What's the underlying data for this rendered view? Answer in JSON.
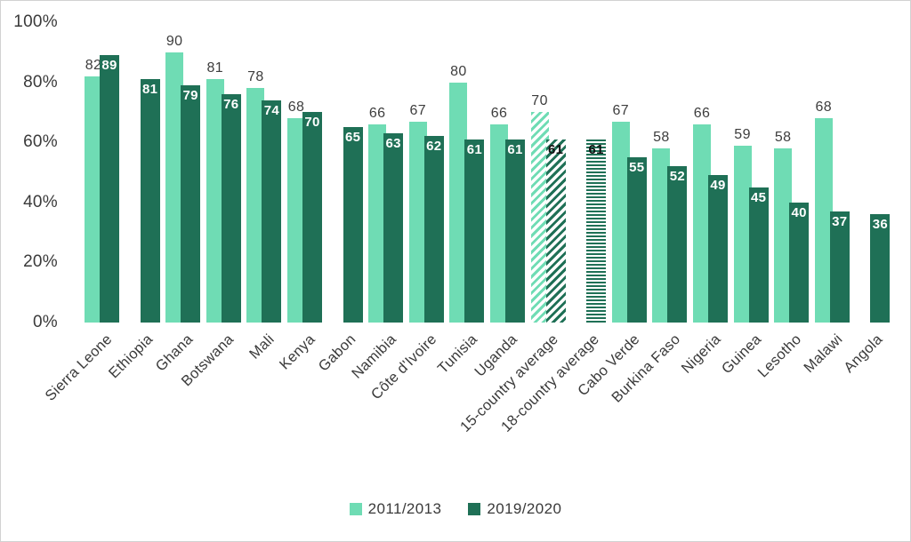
{
  "figure": {
    "background": "#ffffff",
    "border_color": "#d2d2d2"
  },
  "chart_data": {
    "type": "bar",
    "title": "",
    "xlabel": "",
    "ylabel": "",
    "ylim": [
      0,
      100
    ],
    "yticks": [
      "0%",
      "20%",
      "40%",
      "60%",
      "80%",
      "100%"
    ],
    "grid": false,
    "legend_position": "bottom",
    "categories": [
      "Sierra Leone",
      "Ethiopia",
      "Ghana",
      "Botswana",
      "Mali",
      "Kenya",
      "Gabon",
      "Namibia",
      "Côte d'Ivoire",
      "Tunisia",
      "Uganda",
      "15-country average",
      "18-country average",
      "Cabo Verde",
      "Burkina Faso",
      "Nigeria",
      "Guinea",
      "Lesotho",
      "Malawi",
      "Angola"
    ],
    "series": [
      {
        "name": "2011/2013",
        "color": "#6FDCB4",
        "values": [
          82,
          null,
          90,
          81,
          78,
          68,
          null,
          66,
          67,
          80,
          66,
          70,
          null,
          67,
          58,
          66,
          59,
          58,
          68,
          null
        ]
      },
      {
        "name": "2019/2020",
        "color": "#1F7056",
        "values": [
          89,
          81,
          79,
          76,
          74,
          70,
          65,
          63,
          62,
          61,
          61,
          61,
          61,
          55,
          52,
          49,
          45,
          40,
          37,
          36
        ]
      }
    ],
    "hatched": [
      {
        "category": "15-country average",
        "series": [
          "2011/2013",
          "2019/2020"
        ],
        "pattern": "diagonal-stripes"
      },
      {
        "category": "18-country average",
        "series": [
          "2019/2020"
        ],
        "pattern": "horizontal-stripes"
      }
    ],
    "value_label_colors": {
      "above_bar": "#3d3d3d",
      "inside_dark_bar": "#ffffff",
      "on_hatched_bar": "#111111"
    }
  }
}
